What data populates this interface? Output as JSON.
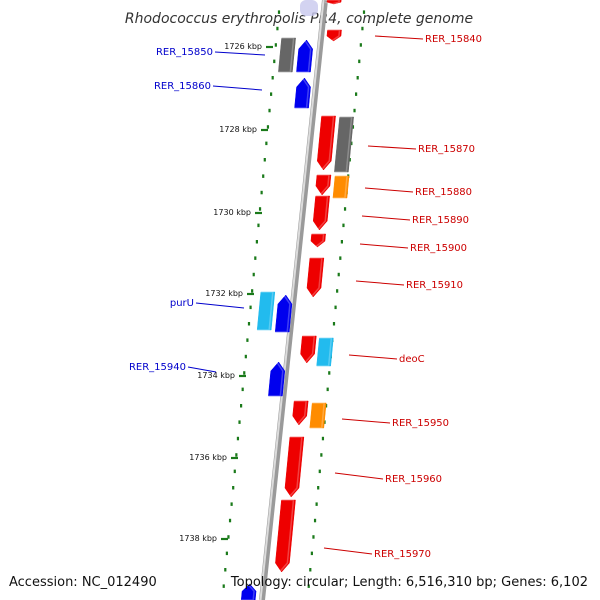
{
  "title": "Rhodococcus erythropolis PR4, complete genome",
  "footer": {
    "accession": "Accession: NC_012490",
    "topology": "Topology: circular; Length: 6,516,310 bp; Genes: 6,102"
  },
  "colors": {
    "forward_label": "#0000cc",
    "reverse_label": "#cc0000",
    "tick": "#1a7a1a",
    "blue": "#0000ee",
    "red": "#ee0000",
    "gray": "#666666",
    "orange": "#ff8c00",
    "cyan": "#22bbee"
  },
  "kbp_labels": [
    {
      "kbp": 1726,
      "text": "1726 kbp"
    },
    {
      "kbp": 1728,
      "text": "1728 kbp"
    },
    {
      "kbp": 1730,
      "text": "1730 kbp"
    },
    {
      "kbp": 1732,
      "text": "1732 kbp"
    },
    {
      "kbp": 1734,
      "text": "1734 kbp"
    },
    {
      "kbp": 1736,
      "text": "1736 kbp"
    },
    {
      "kbp": 1738,
      "text": "1738 kbp"
    }
  ],
  "genes_forward": [
    {
      "label": "RER_15850"
    },
    {
      "label": "RER_15860"
    },
    {
      "label": "purU"
    },
    {
      "label": "RER_15940"
    }
  ],
  "genes_reverse": [
    {
      "label": "RER_15840"
    },
    {
      "label": "RER_15870"
    },
    {
      "label": "RER_15880"
    },
    {
      "label": "RER_15890"
    },
    {
      "label": "RER_15900"
    },
    {
      "label": "RER_15910"
    },
    {
      "label": "deoC"
    },
    {
      "label": "RER_15950"
    },
    {
      "label": "RER_15960"
    },
    {
      "label": "RER_15970"
    }
  ]
}
